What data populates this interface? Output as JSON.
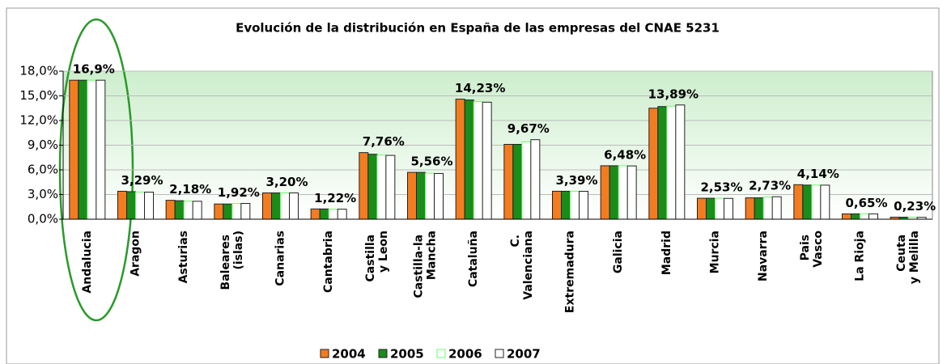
{
  "chart_data": {
    "type": "bar",
    "title": "Evolución de la distribución en España de las empresas del CNAE 5231",
    "categories": [
      "Andalucia",
      "Aragon",
      "Asturias",
      "Baleares (islas)",
      "Canarias",
      "Cantabria",
      "Castilla y Leon",
      "Castilla-la Mancha",
      "Cataluña",
      "C. Valenciana",
      "Extremadura",
      "Galicia",
      "Madrid",
      "Murcia",
      "Navarra",
      "Pais Vasco",
      "La Rioja",
      "Ceuta y Melilla"
    ],
    "series": [
      {
        "name": "2004",
        "color": "#f47c20",
        "values": [
          16.9,
          3.4,
          2.3,
          1.85,
          3.2,
          1.25,
          8.1,
          5.7,
          14.6,
          9.1,
          3.4,
          6.5,
          13.5,
          2.55,
          2.6,
          4.2,
          0.65,
          0.25
        ]
      },
      {
        "name": "2005",
        "color": "#1a8c1a",
        "values": [
          16.9,
          3.35,
          2.25,
          1.85,
          3.2,
          1.25,
          7.9,
          5.7,
          14.5,
          9.1,
          3.4,
          6.5,
          13.7,
          2.55,
          2.6,
          4.15,
          0.65,
          0.25
        ]
      },
      {
        "name": "2006",
        "color": "#66ff66",
        "values": [
          16.9,
          3.3,
          2.2,
          1.9,
          3.2,
          1.22,
          7.8,
          5.6,
          14.3,
          9.4,
          3.4,
          6.5,
          13.75,
          2.55,
          2.7,
          4.15,
          0.65,
          0.25
        ]
      },
      {
        "name": "2007",
        "color": "#ffffff",
        "values": [
          16.9,
          3.29,
          2.18,
          1.92,
          3.2,
          1.22,
          7.76,
          5.56,
          14.23,
          9.67,
          3.39,
          6.48,
          13.89,
          2.53,
          2.73,
          4.14,
          0.65,
          0.23
        ],
        "value_labels": [
          "16,9%",
          "3,29%",
          "2,18%",
          "1,92%",
          "3,20%",
          "1,22%",
          "7,76%",
          "5,56%",
          "14,23%",
          "9,67%",
          "3,39%",
          "6,48%",
          "13,89%",
          "2,53%",
          "2,73%",
          "4,14%",
          "0,65%",
          "0,23%"
        ]
      }
    ],
    "ylim": [
      0,
      18
    ],
    "yticks": [
      {
        "value": 0,
        "label": "0,0%"
      },
      {
        "value": 3,
        "label": "3,0%"
      },
      {
        "value": 6,
        "label": "6,0%"
      },
      {
        "value": 9,
        "label": "9,0%"
      },
      {
        "value": 12,
        "label": "12,0%"
      },
      {
        "value": 15,
        "label": "15,0%"
      },
      {
        "value": 18,
        "label": "18,0%"
      }
    ],
    "grid": true,
    "legend": "bottom"
  }
}
